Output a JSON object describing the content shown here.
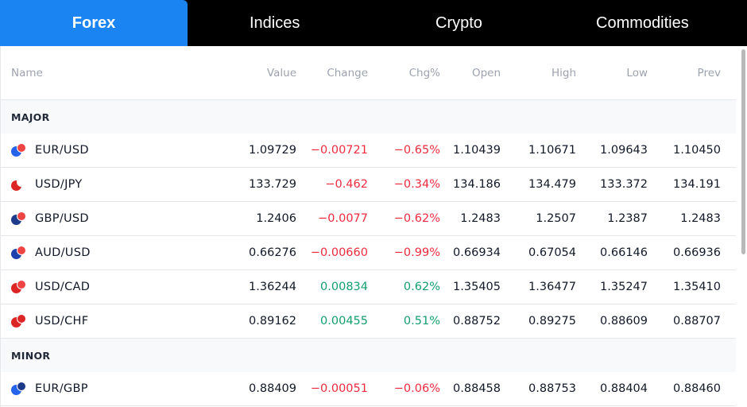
{
  "tabs": [
    "Forex",
    "Indices",
    "Crypto",
    "Commodities"
  ],
  "active_tab": "Forex",
  "columns": [
    "Name",
    "Value",
    "Change",
    "Chg%",
    "Open",
    "High",
    "Low",
    "Prev"
  ],
  "sections": [
    {
      "title": "MAJOR",
      "rows": [
        {
          "name": "EUR/USD",
          "value": "1.09729",
          "change": "−0.00721",
          "chgp": "−0.65%",
          "open": "1.10439",
          "high": "1.10671",
          "low": "1.09643",
          "prev": "1.10450",
          "dir": "neg",
          "flag_a": "#2563eb",
          "flag_b": "#ef4444"
        },
        {
          "name": "USD/JPY",
          "value": "133.729",
          "change": "−0.462",
          "chgp": "−0.34%",
          "open": "134.186",
          "high": "134.479",
          "low": "133.372",
          "prev": "134.191",
          "dir": "neg",
          "flag_a": "#dc2626",
          "flag_b": "#ffffff"
        },
        {
          "name": "GBP/USD",
          "value": "1.2406",
          "change": "−0.0077",
          "chgp": "−0.62%",
          "open": "1.2483",
          "high": "1.2507",
          "low": "1.2387",
          "prev": "1.2483",
          "dir": "neg",
          "flag_a": "#1e3a8a",
          "flag_b": "#ef4444"
        },
        {
          "name": "AUD/USD",
          "value": "0.66276",
          "change": "−0.00660",
          "chgp": "−0.99%",
          "open": "0.66934",
          "high": "0.67054",
          "low": "0.66146",
          "prev": "0.66936",
          "dir": "neg",
          "flag_a": "#1e40af",
          "flag_b": "#ef4444"
        },
        {
          "name": "USD/CAD",
          "value": "1.36244",
          "change": "0.00834",
          "chgp": "0.62%",
          "open": "1.35405",
          "high": "1.36477",
          "low": "1.35247",
          "prev": "1.35410",
          "dir": "pos",
          "flag_a": "#dc2626",
          "flag_b": "#ef4444"
        },
        {
          "name": "USD/CHF",
          "value": "0.89162",
          "change": "0.00455",
          "chgp": "0.51%",
          "open": "0.88752",
          "high": "0.89275",
          "low": "0.88609",
          "prev": "0.88707",
          "dir": "pos",
          "flag_a": "#dc2626",
          "flag_b": "#dc2626"
        }
      ]
    },
    {
      "title": "MINOR",
      "rows": [
        {
          "name": "EUR/GBP",
          "value": "0.88409",
          "change": "−0.00051",
          "chgp": "−0.06%",
          "open": "0.88458",
          "high": "0.88753",
          "low": "0.88404",
          "prev": "0.88460",
          "dir": "neg",
          "flag_a": "#2563eb",
          "flag_b": "#1e3a8a"
        }
      ]
    }
  ]
}
